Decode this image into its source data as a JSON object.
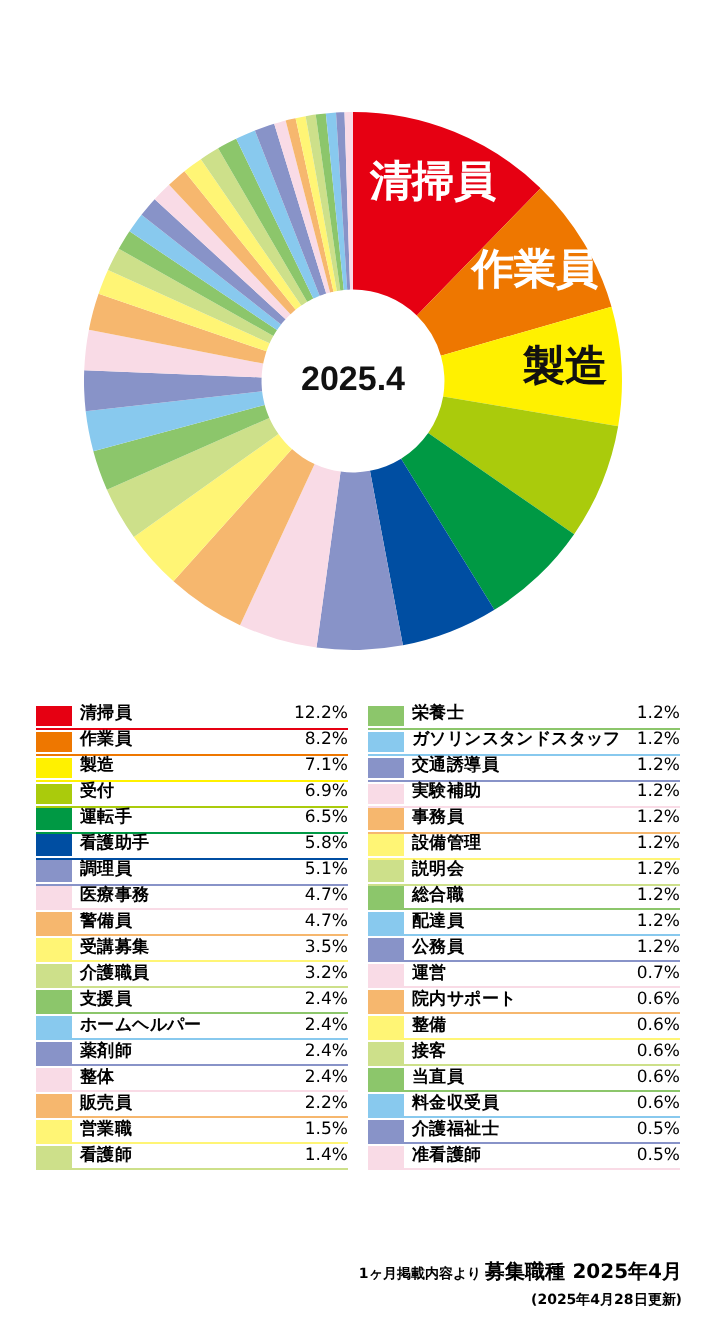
{
  "chart_data": {
    "type": "donut",
    "title": "募集職種 2025年4月",
    "subtitle": "(2025年4月28日更新)",
    "categories": [
      "清掃員",
      "作業員",
      "製造",
      "受付",
      "運転手",
      "看護助手",
      "調理員",
      "医療事務",
      "警備員",
      "受講募集",
      "介護職員",
      "支援員",
      "ホームヘルパー",
      "薬剤師",
      "整体",
      "販売員",
      "営業職",
      "看護師",
      "栄養士",
      "ガソリンスタンドスタッフ",
      "交通誘導員",
      "実験補助",
      "事務員",
      "設備管理",
      "説明会",
      "総合職",
      "配達員",
      "公務員",
      "運営",
      "院内サポート",
      "整備",
      "接客",
      "当直員",
      "料金収受員",
      "介護福祉士",
      "准看護師"
    ],
    "values": [
      12.2,
      8.2,
      7.1,
      6.9,
      6.5,
      5.8,
      5.1,
      4.7,
      4.7,
      3.5,
      3.2,
      2.4,
      2.4,
      2.4,
      2.4,
      2.2,
      1.5,
      1.4,
      1.2,
      1.2,
      1.2,
      1.2,
      1.2,
      1.2,
      1.2,
      1.2,
      1.2,
      1.2,
      0.7,
      0.6,
      0.6,
      0.6,
      0.6,
      0.6,
      0.5,
      0.5
    ],
    "value_labels": [
      "12.2%",
      "8.2%",
      "7.1%",
      "6.9%",
      "6.5%",
      "5.8%",
      "5.1%",
      "4.7%",
      "4.7%",
      "3.5%",
      "3.2%",
      "2.4%",
      "2.4%",
      "2.4%",
      "2.4%",
      "2.2%",
      "1.5%",
      "1.4%",
      "1.2%",
      "1.2%",
      "1.2%",
      "1.2%",
      "1.2%",
      "1.2%",
      "1.2%",
      "1.2%",
      "1.2%",
      "1.2%",
      "0.7%",
      "0.6%",
      "0.6%",
      "0.6%",
      "0.6%",
      "0.6%",
      "0.5%",
      "0.5%"
    ],
    "colors": [
      "#e60012",
      "#ee7700",
      "#fff100",
      "#aacb0c",
      "#009944",
      "#004ea2",
      "#8893c8",
      "#f9dbe6",
      "#f6b76e",
      "#fff575",
      "#cde08a",
      "#8cc66b",
      "#88c9ee",
      "#8893c8",
      "#f9dbe6",
      "#f6b76e",
      "#fff575",
      "#cde08a",
      "#8cc66b",
      "#88c9ee",
      "#8893c8",
      "#f9dbe6",
      "#f6b76e",
      "#fff575",
      "#cde08a",
      "#8cc66b",
      "#88c9ee",
      "#8893c8",
      "#f9dbe6",
      "#f6b76e",
      "#fff575",
      "#cde08a",
      "#8cc66b",
      "#88c9ee",
      "#8893c8",
      "#f9dbe6"
    ],
    "legend": "bottom",
    "annotations": [
      {
        "text": "清掃員",
        "x": "清掃員"
      },
      {
        "text": "作業員",
        "x": "作業員"
      },
      {
        "text": "製造",
        "x": "製造"
      },
      "2025.4",
      "1ヶ月掲載内容より"
    ]
  }
}
